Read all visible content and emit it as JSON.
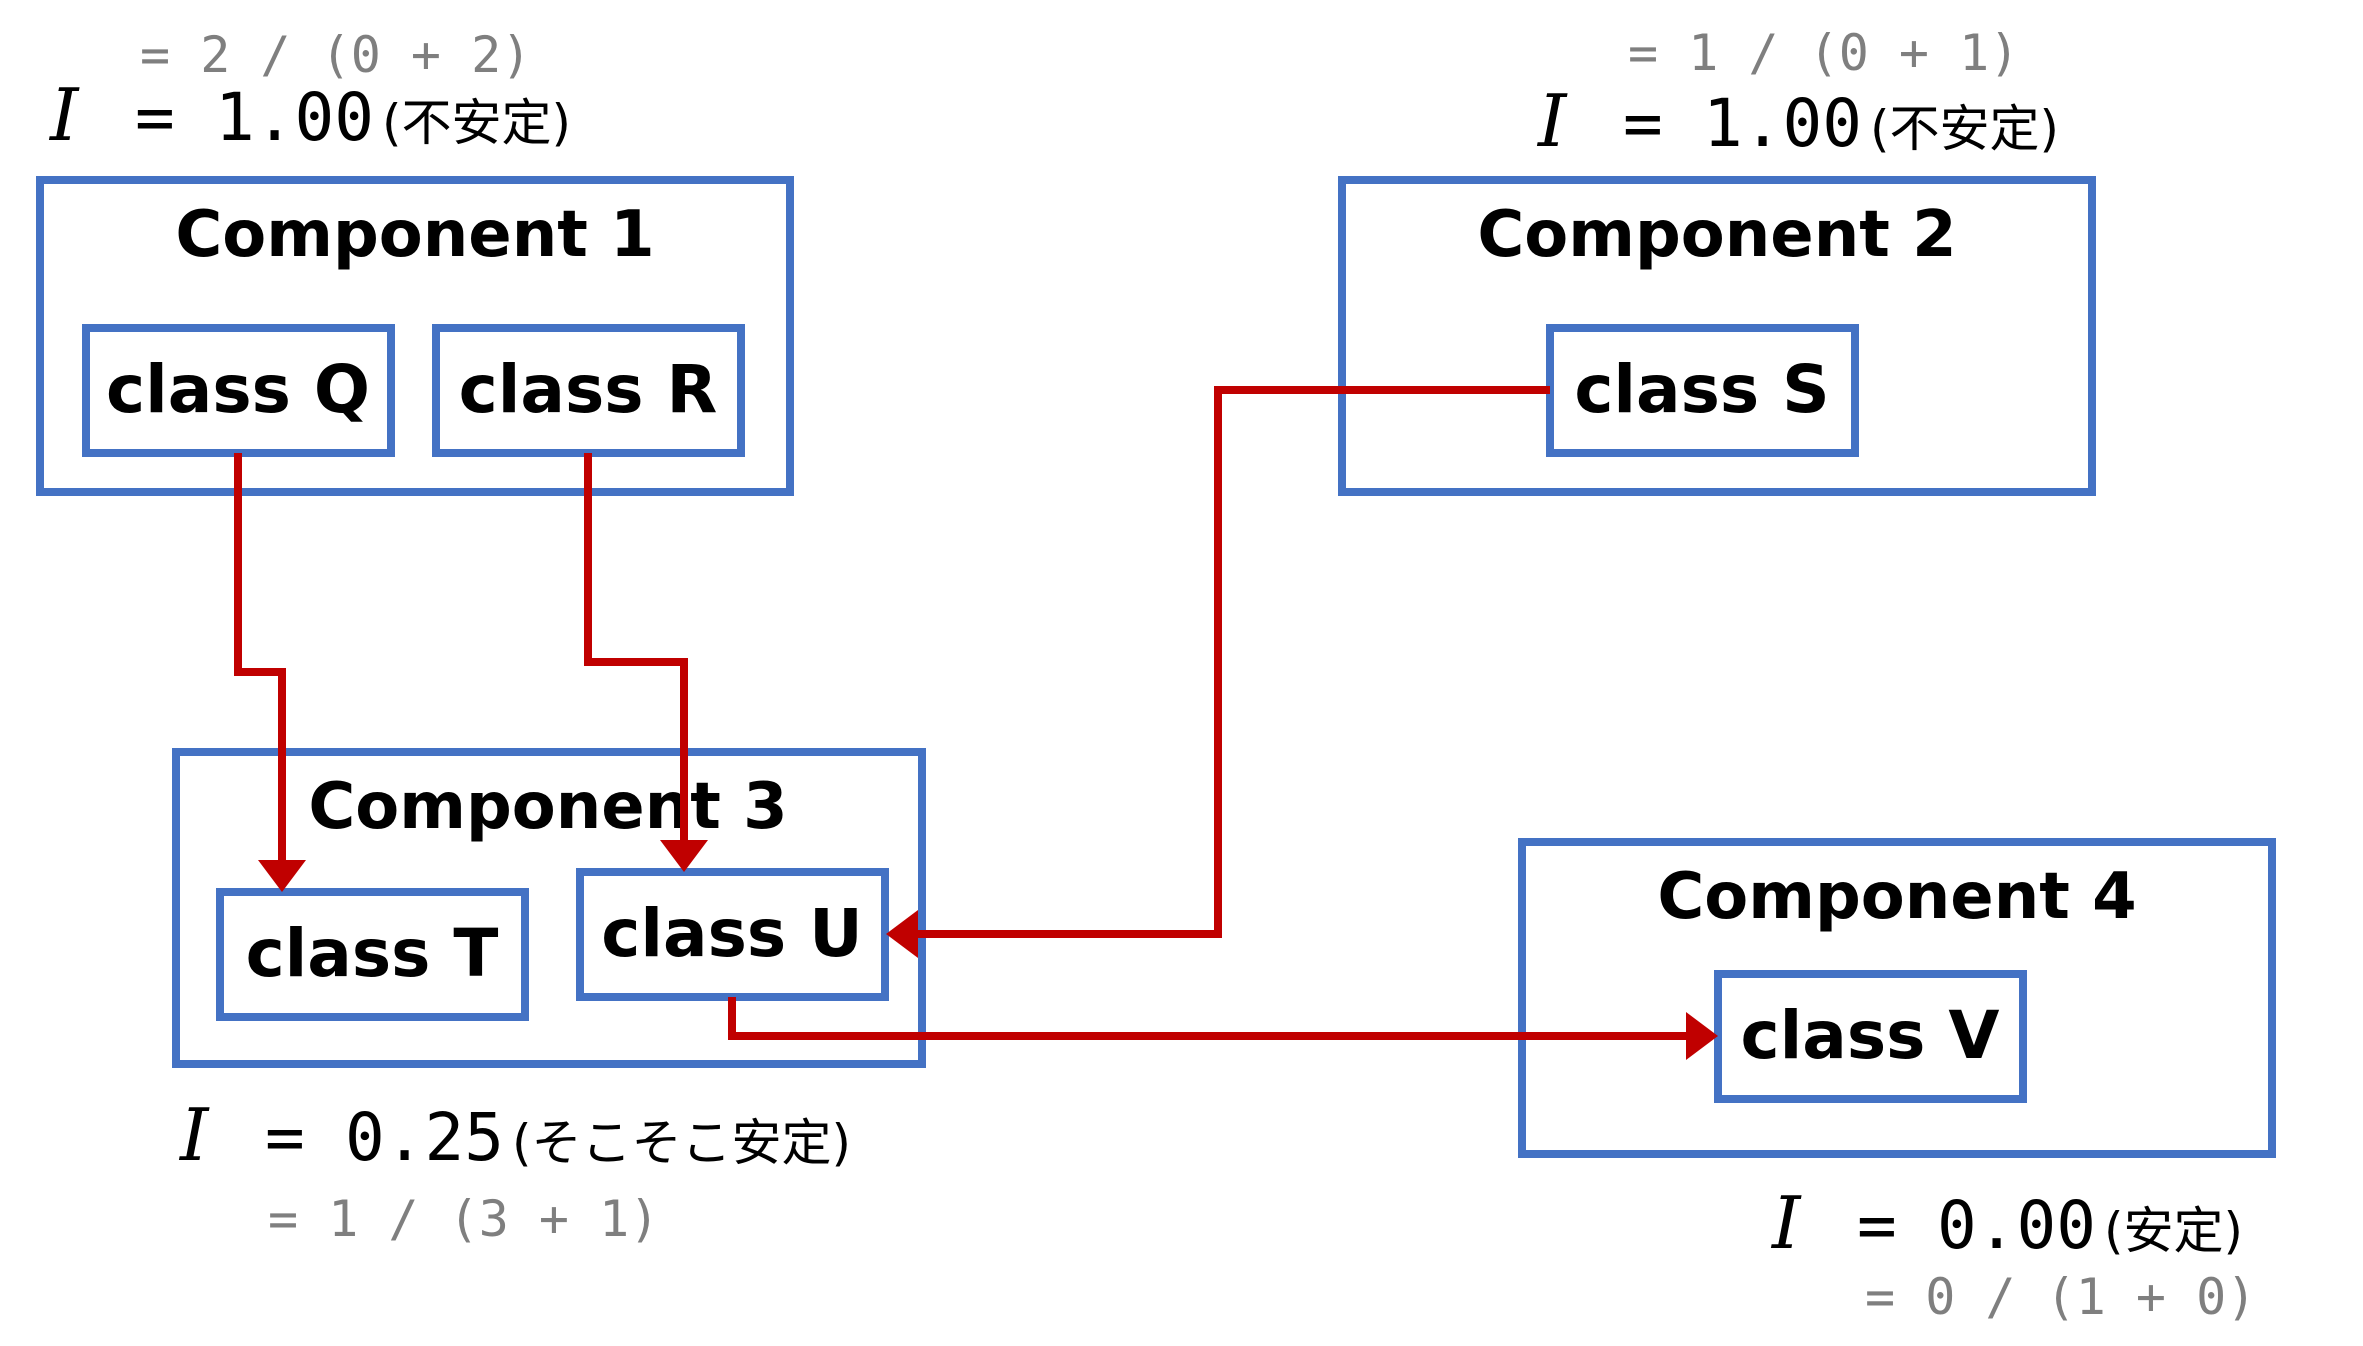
{
  "components": [
    {
      "title": "Component 1",
      "formula": "= 2 / (0 + 2)",
      "instability": {
        "symbol": "I",
        "equals": "=",
        "value": "1.00",
        "note": "(不安定)"
      },
      "classes": [
        "class Q",
        "class R"
      ]
    },
    {
      "title": "Component 2",
      "formula": "= 1 / (0 + 1)",
      "instability": {
        "symbol": "I",
        "equals": "=",
        "value": "1.00",
        "note": "(不安定)"
      },
      "classes": [
        "class S"
      ]
    },
    {
      "title": "Component 3",
      "formula": "= 1 / (3 + 1)",
      "instability": {
        "symbol": "I",
        "equals": "=",
        "value": "0.25",
        "note": "(そこそこ安定)"
      },
      "classes": [
        "class T",
        "class U"
      ]
    },
    {
      "title": "Component 4",
      "formula": "= 0 / (1 + 0)",
      "instability": {
        "symbol": "I",
        "equals": "=",
        "value": "0.00",
        "note": "(安定)"
      },
      "classes": [
        "class V"
      ]
    }
  ],
  "dependencies": [
    {
      "from": "class Q",
      "to": "class T"
    },
    {
      "from": "class R",
      "to": "class U"
    },
    {
      "from": "class S",
      "to": "class U"
    },
    {
      "from": "class U",
      "to": "class V"
    }
  ],
  "colors": {
    "box": "#4472c4",
    "arrow": "#c00000",
    "formula": "#7f7f7f"
  }
}
